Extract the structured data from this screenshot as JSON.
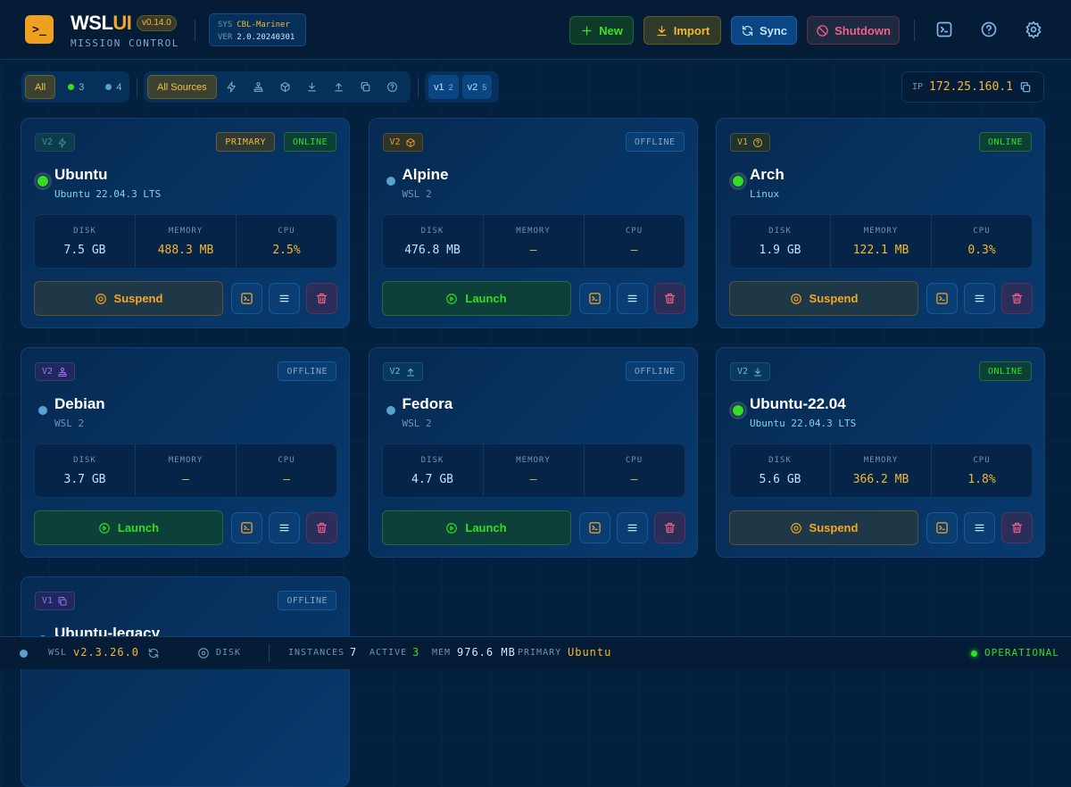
{
  "header": {
    "logo": ">_",
    "brand_a": "WSL",
    "brand_b": "UI",
    "version": "v0.14.0",
    "subtitle": "MISSION CONTROL",
    "sys_label": "SYS",
    "sys_value": "CBL-Mariner",
    "ver_label": "VER",
    "ver_value": "2.0.20240301",
    "buttons": [
      {
        "label": "New",
        "icon": "plus-icon"
      },
      {
        "label": "Import",
        "icon": "download-icon"
      },
      {
        "label": "Sync",
        "icon": "refresh-icon"
      },
      {
        "label": "Shutdown",
        "icon": "ban-icon"
      }
    ],
    "icons": [
      "terminal-icon",
      "help-icon",
      "gear-icon"
    ]
  },
  "filters": {
    "state": [
      {
        "label": "All",
        "active": true
      },
      {
        "label": "3",
        "dot": "#33dd22"
      },
      {
        "label": "4",
        "dot": "#5aa0d0"
      }
    ],
    "sources": {
      "label": "All Sources",
      "icons": [
        "bolt-icon",
        "store-icon",
        "package-icon",
        "download-icon",
        "upload-icon",
        "copy-icon",
        "help-icon"
      ]
    },
    "versions": [
      {
        "label": "v1",
        "count": "2"
      },
      {
        "label": "v2",
        "count": "5"
      }
    ]
  },
  "ip": {
    "label": "IP",
    "value": "172.25.160.1"
  },
  "stat_labels": {
    "disk": "DISK",
    "memory": "MEMORY",
    "cpu": "CPU"
  },
  "instances": [
    {
      "version": "V2",
      "source_icon": "bolt-icon",
      "badge_color": "teal",
      "primary": "PRIMARY",
      "status": "ONLINE",
      "name": "Ubuntu",
      "desc": "Ubuntu 22.04.3 LTS",
      "disk": "7.5 GB",
      "memory": "488.3 MB",
      "cpu": "2.5%",
      "action": "Suspend"
    },
    {
      "version": "V2",
      "source_icon": "package-icon",
      "badge_color": "orange",
      "status": "OFFLINE",
      "name": "Alpine",
      "desc": "WSL 2",
      "disk": "476.8 MB",
      "memory": "—",
      "cpu": "—",
      "action": "Launch"
    },
    {
      "version": "V1",
      "source_icon": "help-icon",
      "badge_color": "amber",
      "status": "ONLINE",
      "name": "Arch",
      "desc": "Linux",
      "disk": "1.9 GB",
      "memory": "122.1 MB",
      "cpu": "0.3%",
      "action": "Suspend"
    },
    {
      "version": "V2",
      "source_icon": "store-icon",
      "badge_color": "purple",
      "status": "OFFLINE",
      "name": "Debian",
      "desc": "WSL 2",
      "disk": "3.7 GB",
      "memory": "—",
      "cpu": "—",
      "action": "Launch"
    },
    {
      "version": "V2",
      "source_icon": "upload-icon",
      "badge_color": "blue",
      "status": "OFFLINE",
      "name": "Fedora",
      "desc": "WSL 2",
      "disk": "4.7 GB",
      "memory": "—",
      "cpu": "—",
      "action": "Launch"
    },
    {
      "version": "V2",
      "source_icon": "download-icon",
      "badge_color": "blue",
      "status": "ONLINE",
      "name": "Ubuntu-22.04",
      "desc": "Ubuntu 22.04.3 LTS",
      "disk": "5.6 GB",
      "memory": "366.2 MB",
      "cpu": "1.8%",
      "action": "Suspend"
    },
    {
      "version": "V1",
      "source_icon": "copy-icon",
      "badge_color": "purple",
      "status": "OFFLINE",
      "name": "Ubuntu-legacy"
    }
  ],
  "footer": {
    "wsl_label": "WSL",
    "wsl_value": "v2.3.26.0",
    "disk_label": "DISK",
    "instances_label": "INSTANCES",
    "instances": "7",
    "active_label": "ACTIVE",
    "active": "3",
    "mem_label": "MEM",
    "mem": "976.6 MB",
    "primary_label": "PRIMARY",
    "primary": "Ubuntu",
    "status": "OPERATIONAL"
  },
  "colors": {
    "online": "#33dd22",
    "offline": "#5aa0d0",
    "accent": "#f5a623",
    "danger": "#e0507a"
  }
}
